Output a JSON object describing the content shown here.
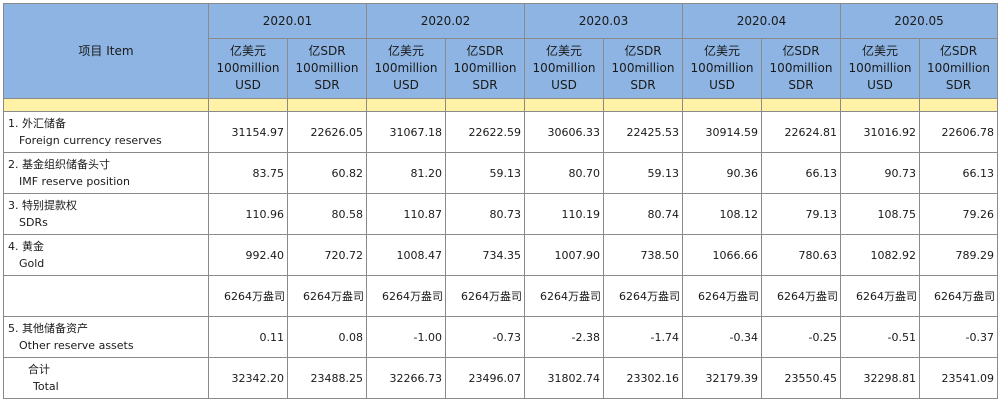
{
  "table": {
    "item_header": "项目 Item",
    "months": [
      "2020.01",
      "2020.02",
      "2020.03",
      "2020.04",
      "2020.05"
    ],
    "units": {
      "usd": [
        "亿美元",
        "100million",
        "USD"
      ],
      "sdr": [
        "亿SDR",
        "100million",
        "SDR"
      ]
    },
    "rows": [
      {
        "cn": "1. 外汇储备",
        "en": "Foreign currency reserves",
        "values": [
          "31154.97",
          "22626.05",
          "31067.18",
          "22622.59",
          "30606.33",
          "22425.53",
          "30914.59",
          "22624.81",
          "31016.92",
          "22606.78"
        ]
      },
      {
        "cn": "2. 基金组织储备头寸",
        "en": "IMF reserve position",
        "values": [
          "83.75",
          "60.82",
          "81.20",
          "59.13",
          "80.70",
          "59.13",
          "90.36",
          "66.13",
          "90.73",
          "66.13"
        ]
      },
      {
        "cn": "3. 特别提款权",
        "en": "SDRs",
        "values": [
          "110.96",
          "80.58",
          "110.87",
          "80.73",
          "110.19",
          "80.74",
          "108.12",
          "79.13",
          "108.75",
          "79.26"
        ]
      },
      {
        "cn": "4. 黄金",
        "en": "Gold",
        "values": [
          "992.40",
          "720.72",
          "1008.47",
          "734.35",
          "1007.90",
          "738.50",
          "1066.66",
          "780.63",
          "1082.92",
          "789.29"
        ]
      },
      {
        "cn": "",
        "en": "",
        "values": [
          "6264万盎司",
          "6264万盎司",
          "6264万盎司",
          "6264万盎司",
          "6264万盎司",
          "6264万盎司",
          "6264万盎司",
          "6264万盎司",
          "6264万盎司",
          "6264万盎司"
        ]
      },
      {
        "cn": "5. 其他储备资产",
        "en": "Other reserve assets",
        "values": [
          "0.11",
          "0.08",
          "-1.00",
          "-0.73",
          "-2.38",
          "-1.74",
          "-0.34",
          "-0.25",
          "-0.51",
          "-0.37"
        ]
      },
      {
        "cn": "合计",
        "en": "Total",
        "values": [
          "32342.20",
          "23488.25",
          "32266.73",
          "23496.07",
          "31802.74",
          "23302.16",
          "32179.39",
          "23550.45",
          "32298.81",
          "23541.09"
        ]
      }
    ]
  },
  "colors": {
    "header_bg": "#8db4e2",
    "band_bg": "#fff2a6",
    "border": "#8a8a8a"
  }
}
